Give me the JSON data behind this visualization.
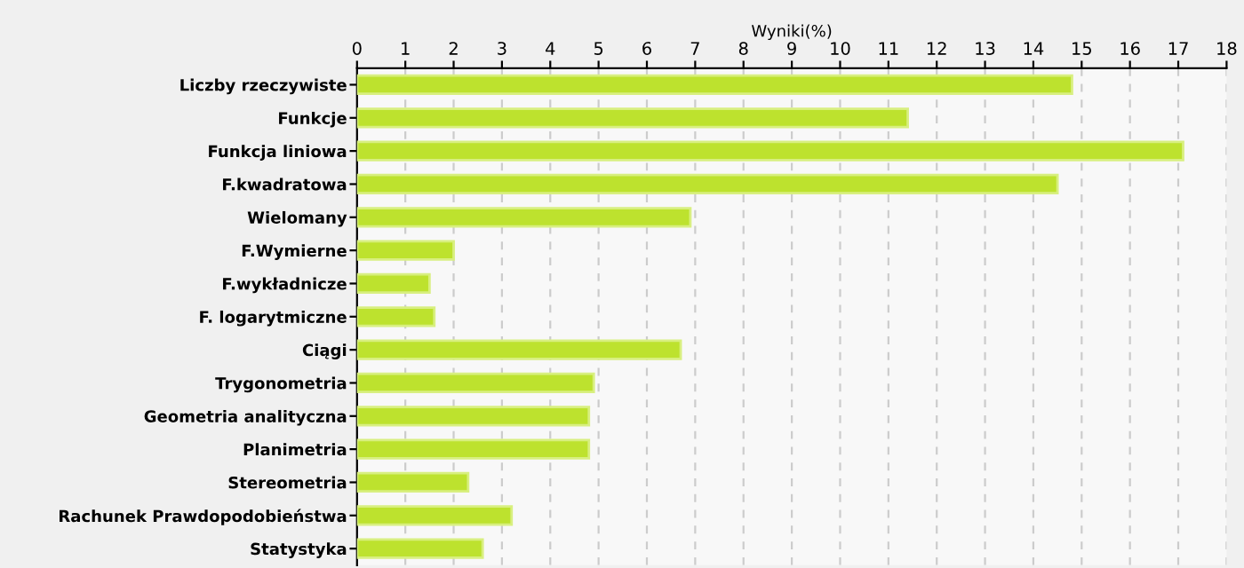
{
  "chart_data": {
    "type": "bar",
    "orientation": "horizontal",
    "xlabel": "Wyniki(%)",
    "categories": [
      "Liczby rzeczywiste",
      "Funkcje",
      "Funkcja liniowa",
      "F.kwadratowa",
      "Wielomany",
      "F.Wymierne",
      "F.wykładnicze",
      "F. logarytmiczne",
      "Ciągi",
      "Trygonometria",
      "Geometria analityczna",
      "Planimetria",
      "Stereometria",
      "Rachunek Prawdopodobieństwa",
      "Statystyka"
    ],
    "values": [
      14.8,
      11.4,
      17.1,
      14.5,
      6.9,
      2.0,
      1.5,
      1.6,
      6.7,
      4.9,
      4.8,
      4.8,
      2.3,
      3.2,
      2.6
    ],
    "color": "#bde22e",
    "xlim": [
      0,
      18
    ],
    "xticks": [
      0,
      1,
      2,
      3,
      4,
      5,
      6,
      7,
      8,
      9,
      10,
      11,
      12,
      13,
      14,
      15,
      16,
      17,
      18
    ],
    "grid": "x",
    "legend": false
  }
}
